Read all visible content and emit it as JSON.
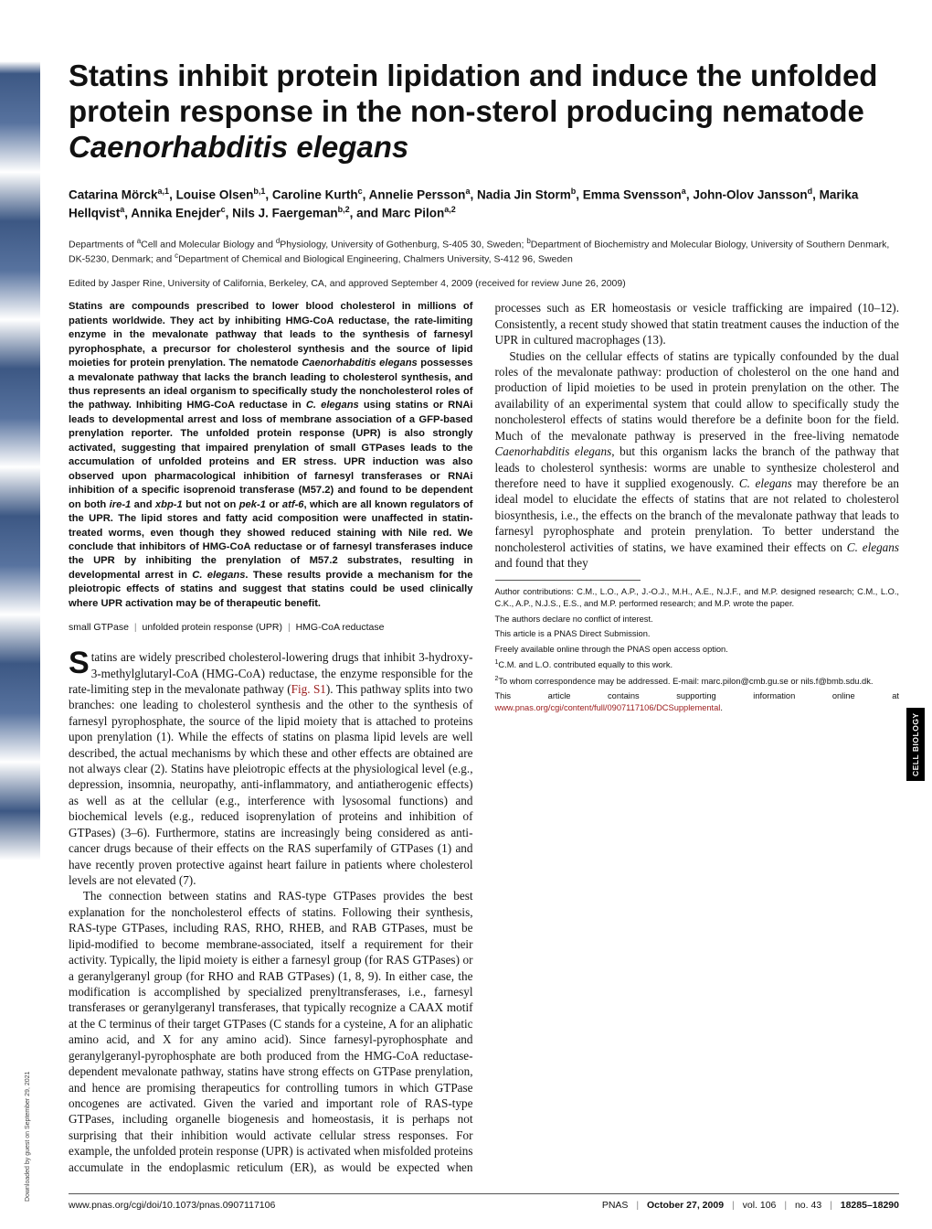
{
  "title_pre": "Statins inhibit protein lipidation and induce the unfolded protein response in the non-sterol producing nematode ",
  "title_ital": "Caenorhabditis elegans",
  "authors_html": "Catarina Mörck<sup>a,1</sup>, Louise Olsen<sup>b,1</sup>, Caroline Kurth<sup>c</sup>, Annelie Persson<sup>a</sup>, Nadia Jin Storm<sup>b</sup>, Emma Svensson<sup>a</sup>, John-Olov Jansson<sup>d</sup>, Marika Hellqvist<sup>a</sup>, Annika Enejder<sup>c</sup>, Nils J. Faergeman<sup>b,2</sup>, and Marc Pilon<sup>a,2</sup>",
  "affiliations_html": "Departments of <sup>a</sup>Cell and Molecular Biology and <sup>d</sup>Physiology, University of Gothenburg, S-405 30, Sweden; <sup>b</sup>Department of Biochemistry and Molecular Biology, University of Southern Denmark, DK-5230, Denmark; and <sup>c</sup>Department of Chemical and Biological Engineering, Chalmers University, S-412 96, Sweden",
  "edited": "Edited by Jasper Rine, University of California, Berkeley, CA, and approved September 4, 2009 (received for review June 26, 2009)",
  "abstract": "Statins are compounds prescribed to lower blood cholesterol in millions of patients worldwide. They act by inhibiting HMG-CoA reductase, the rate-limiting enzyme in the mevalonate pathway that leads to the synthesis of farnesyl pyrophosphate, a precursor for cholesterol synthesis and the source of lipid moieties for protein prenylation. The nematode <span class=\"ital\">Caenorhabditis elegans</span> possesses a mevalonate pathway that lacks the branch leading to cholesterol synthesis, and thus represents an ideal organism to specifically study the noncholesterol roles of the pathway. Inhibiting HMG-CoA reductase in <span class=\"ital\">C. elegans</span> using statins or RNAi leads to developmental arrest and loss of membrane association of a GFP-based prenylation reporter. The unfolded protein response (UPR) is also strongly activated, suggesting that impaired prenylation of small GTPases leads to the accumulation of unfolded proteins and ER stress. UPR induction was also observed upon pharmacological inhibition of farnesyl transferases or RNAi inhibition of a specific isoprenoid transferase (M57.2) and found to be dependent on both <span class=\"ital\">ire-1</span> and <span class=\"ital\">xbp-1</span> but not on <span class=\"ital\">pek-1</span> or <span class=\"ital\">atf-6</span>, which are all known regulators of the UPR. The lipid stores and fatty acid composition were unaffected in statin-treated worms, even though they showed reduced staining with Nile red. We conclude that inhibitors of HMG-CoA reductase or of farnesyl transferases induce the UPR by inhibiting the prenylation of M57.2 substrates, resulting in developmental arrest in <span class=\"ital\">C. elegans</span>. These results provide a mechanism for the pleiotropic effects of statins and suggest that statins could be used clinically where UPR activation may be of therapeutic benefit.",
  "keywords": [
    "small GTPase",
    "unfolded protein response (UPR)",
    "HMG-CoA reductase"
  ],
  "body": {
    "p1": "tatins are widely prescribed cholesterol-lowering drugs that inhibit 3-hydroxy-3-methylglutaryl-CoA (HMG-CoA) reductase, the enzyme responsible for the rate-limiting step in the mevalonate pathway (<span class=\"link\">Fig. S1</span>). This pathway splits into two branches: one leading to cholesterol synthesis and the other to the synthesis of farnesyl pyrophosphate, the source of the lipid moiety that is attached to proteins upon prenylation (1). While the effects of statins on plasma lipid levels are well described, the actual mechanisms by which these and other effects are obtained are not always clear (2). Statins have pleiotropic effects at the physiological level (e.g., depression, insomnia, neuropathy, anti-inflammatory, and antiatherogenic effects) as well as at the cellular (e.g., interference with lysosomal functions) and biochemical levels (e.g., reduced isoprenylation of proteins and inhibition of GTPases) (3–6). Furthermore, statins are increasingly being considered as anti-cancer drugs because of their effects on the RAS superfamily of GTPases (1) and have recently proven protective against heart failure in patients where cholesterol levels are not elevated (7).",
    "p2": "The connection between statins and RAS-type GTPases provides the best explanation for the noncholesterol effects of statins. Following their synthesis, RAS-type GTPases, including RAS, RHO, RHEB, and RAB GTPases, must be lipid-modified to become membrane-associated, itself a requirement for their activity. Typically, the lipid moiety is either a farnesyl group (for RAS GTPases) or a geranylgeranyl group (for RHO and RAB GTPases) (1, 8, 9). In either case, the modification is accomplished by specialized prenyltransferases, i.e., farnesyl transferases or geranylgeranyl transferases, that typically recognize a CAAX motif at the C terminus of their target GTPases (C stands for a cysteine, A for an aliphatic amino acid, and X for any amino acid). Since farnesyl-pyrophosphate and geranylgeranyl-pyrophosphate are both produced from the HMG-CoA reductase-dependent mevalonate pathway, statins have strong effects on GTPase prenylation, and hence are promising therapeutics for controlling tumors in which GTPase oncogenes are activated. Given the varied and important role of RAS-type GTPases, including organelle biogenesis and homeostasis, it is perhaps not surprising that their inhibition would activate cellular stress responses. For example, the unfolded protein response (UPR) is activated when misfolded proteins accumulate in the endoplasmic reticulum (ER), as would be expected when processes such as ER homeostasis or vesicle trafficking are impaired (10–12). Consistently, a recent study showed that statin treatment causes the induction of the UPR in cultured macrophages (13).",
    "p3": "Studies on the cellular effects of statins are typically confounded by the dual roles of the mevalonate pathway: production of cholesterol on the one hand and production of lipid moieties to be used in protein prenylation on the other. The availability of an experimental system that could allow to specifically study the noncholesterol effects of statins would therefore be a definite boon for the field. Much of the mevalonate pathway is preserved in the free-living nematode <span class=\"ital\">Caenorhabditis elegans</span>, but this organism lacks the branch of the pathway that leads to cholesterol synthesis: worms are unable to synthesize cholesterol and therefore need to have it supplied exogenously. <span class=\"ital\">C. elegans</span> may therefore be an ideal model to elucidate the effects of statins that are not related to cholesterol biosynthesis, i.e., the effects on the branch of the mevalonate pathway that leads to farnesyl pyrophosphate and protein prenylation. To better understand the noncholesterol activities of statins, we have examined their effects on <span class=\"ital\">C. elegans</span> and found that they"
  },
  "footnotes": {
    "f1": "Author contributions: C.M., L.O., A.P., J.-O.J., M.H., A.E., N.J.F., and M.P. designed research; C.M., L.O., C.K., A.P., N.J.S., E.S., and M.P. performed research; and M.P. wrote the paper.",
    "f2": "The authors declare no conflict of interest.",
    "f3": "This article is a PNAS Direct Submission.",
    "f4": "Freely available online through the PNAS open access option.",
    "f5": "<sup>1</sup>C.M. and L.O. contributed equally to this work.",
    "f6": "<sup>2</sup>To whom correspondence may be addressed. E-mail: marc.pilon@cmb.gu.se or nils.f@bmb.sdu.dk.",
    "f7": "This article contains supporting information online at <span class=\"link\">www.pnas.org/cgi/content/full/0907117106/DCSupplemental</span>."
  },
  "footer": {
    "left": "www.pnas.org/cgi/doi/10.1073/pnas.0907117106",
    "journal": "PNAS",
    "date": "October 27, 2009",
    "vol": "vol. 106",
    "no": "no. 43",
    "pages": "18285–18290"
  },
  "side_tab": "CELL BIOLOGY",
  "downloaded": "Downloaded by guest on September 29, 2021"
}
